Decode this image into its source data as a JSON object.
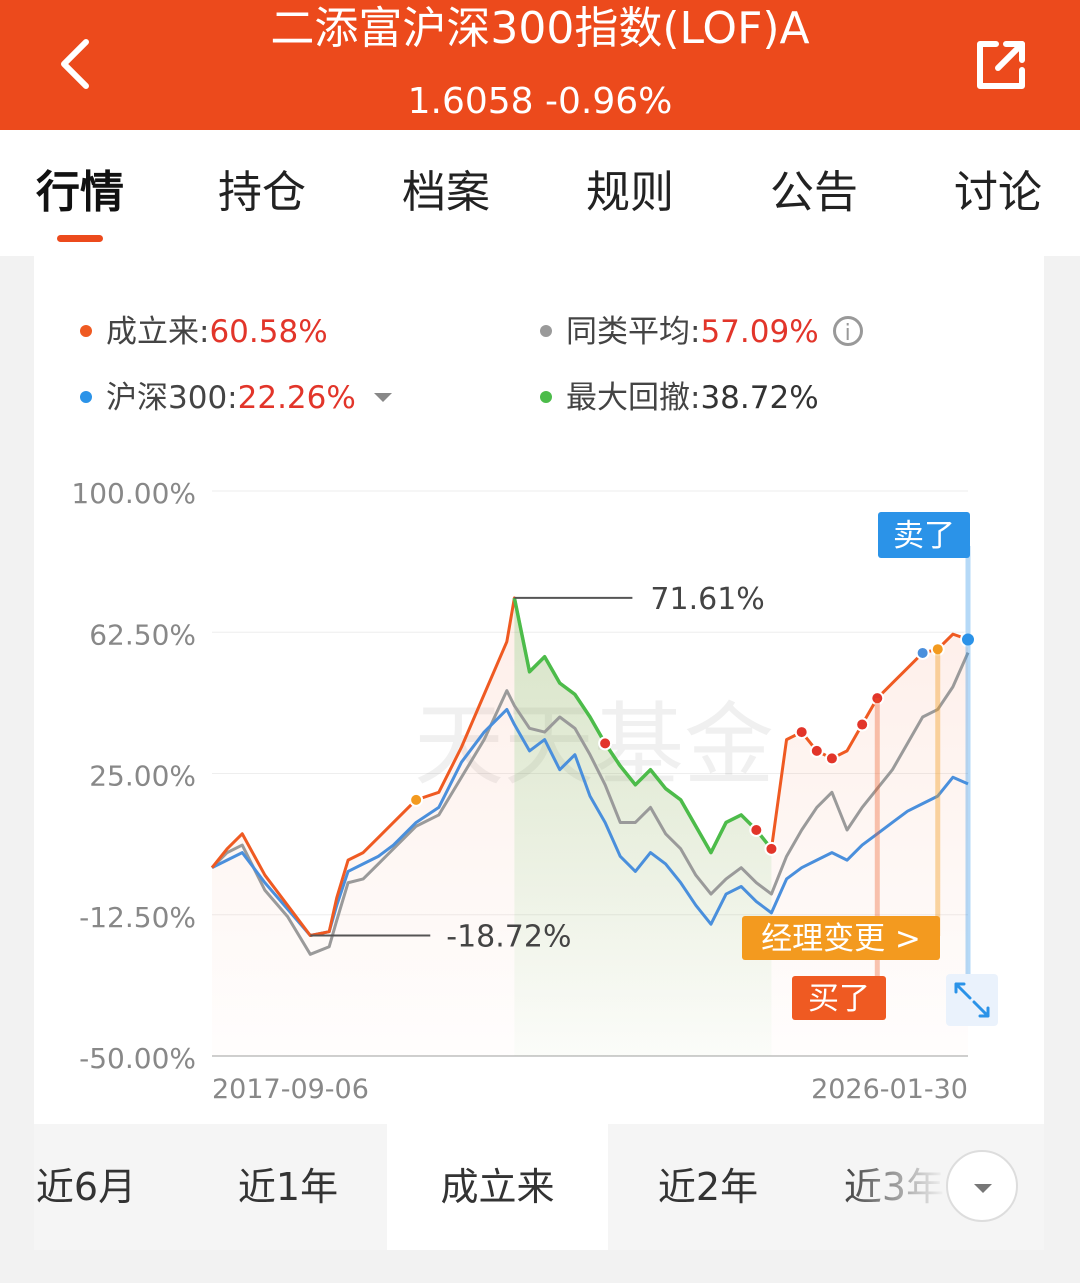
{
  "header": {
    "title": "二添富沪深300指数(LOF)A",
    "price": "1.6058",
    "change": "-0.96%"
  },
  "tabs": [
    "行情",
    "持仓",
    "档案",
    "规则",
    "公告",
    "讨论"
  ],
  "legend": {
    "since_inception_label": "成立来:",
    "since_inception_value": "60.58%",
    "peer_avg_label": "同类平均:",
    "peer_avg_value": "57.09%",
    "hs300_label": "沪深300:",
    "hs300_value": "22.26%",
    "max_drawdown_label": "最大回撤:",
    "max_drawdown_value": "38.72%"
  },
  "colors": {
    "accent": "#ec4a1c",
    "fund": "#ef5a22",
    "peer": "#9a9a9a",
    "hs300": "#4a8fdc",
    "drawdown": "#4cbc4a",
    "manager": "#f39a1f",
    "sell": "#2b93e8"
  },
  "chart_data": {
    "type": "line",
    "y_ticks": [
      "100.00%",
      "62.50%",
      "25.00%",
      "-12.50%",
      "-50.00%"
    ],
    "ylim": [
      -50,
      100
    ],
    "x_start_label": "2017-09-06",
    "x_end_label": "2026-01-30",
    "x": [
      0,
      0.02,
      0.04,
      0.07,
      0.1,
      0.13,
      0.155,
      0.165,
      0.18,
      0.2,
      0.22,
      0.24,
      0.27,
      0.3,
      0.33,
      0.36,
      0.39,
      0.4,
      0.42,
      0.44,
      0.46,
      0.48,
      0.5,
      0.52,
      0.54,
      0.56,
      0.58,
      0.6,
      0.62,
      0.64,
      0.66,
      0.68,
      0.7,
      0.72,
      0.74,
      0.76,
      0.78,
      0.8,
      0.82,
      0.84,
      0.86,
      0.88,
      0.9,
      0.92,
      0.94,
      0.96,
      0.98,
      1.0
    ],
    "series": [
      {
        "name": "成立来",
        "values": [
          0,
          5,
          9,
          -2,
          -10,
          -18,
          -17,
          -8,
          2,
          4,
          8,
          12,
          18,
          20,
          32,
          46,
          60,
          71.61,
          52,
          56,
          49,
          46,
          40,
          33,
          27,
          22,
          26,
          21,
          18,
          11,
          4,
          12,
          14,
          10,
          5,
          34,
          36,
          31,
          29,
          31,
          38,
          45,
          49,
          53,
          57,
          58,
          62,
          60.58
        ]
      },
      {
        "name": "同类平均",
        "values": [
          0,
          4,
          6,
          -6,
          -13,
          -23,
          -21,
          -14,
          -4,
          -3,
          1,
          5,
          11,
          14,
          24,
          34,
          47,
          43,
          37,
          36,
          40,
          37,
          30,
          22,
          12,
          12,
          16,
          9,
          5,
          -2,
          -7,
          -3,
          0,
          -4,
          -7,
          3,
          10,
          16,
          20,
          10,
          16,
          21,
          26,
          33,
          40,
          42,
          48,
          57.09
        ]
      },
      {
        "name": "沪深300",
        "values": [
          0,
          2,
          4,
          -4,
          -11,
          -18,
          -17,
          -10,
          -1,
          1,
          3,
          6,
          12,
          16,
          28,
          36,
          42,
          38,
          31,
          34,
          26,
          30,
          19,
          12,
          3,
          -1,
          4,
          1,
          -4,
          -10,
          -15,
          -7,
          -5,
          -9,
          -12,
          -3,
          0,
          2,
          4,
          2,
          6,
          9,
          12,
          15,
          17,
          19,
          24,
          22.26
        ]
      }
    ],
    "annotations": {
      "max_label": "71.61%",
      "min_label": "-18.72%",
      "buy_label": "买了",
      "sell_label": "卖了",
      "manager_change_label": "经理变更 >"
    },
    "watermark": "天天基金"
  },
  "ranges": [
    "近6月",
    "近1年",
    "成立来",
    "近2年",
    "近3年"
  ],
  "active_range": "成立来"
}
